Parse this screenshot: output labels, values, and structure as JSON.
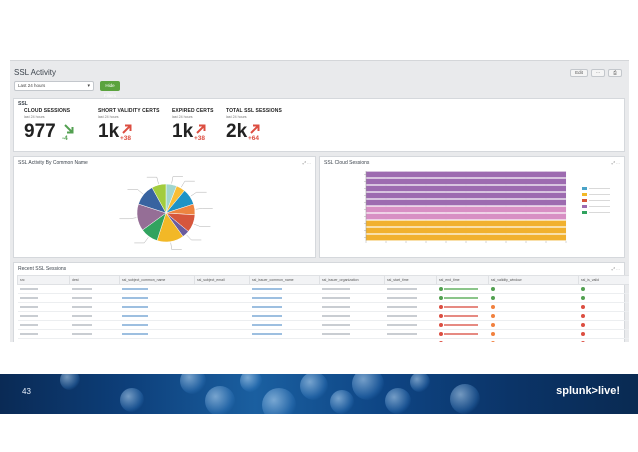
{
  "dashboard": {
    "title": "SSL Activity",
    "time_picker": "Last 24 hours",
    "hide_filters_label": "Hide Filters",
    "toolbar": {
      "edit": "Edit",
      "export": "⋯",
      "print": "⎙"
    }
  },
  "kpis": {
    "panel_title": "SSL",
    "items": [
      {
        "label": "CLOUD SESSIONS",
        "sub": "last 24 hours",
        "value": "977",
        "delta": "-4",
        "trend": "down",
        "color": "#53a051"
      },
      {
        "label": "SHORT VALIDITY CERTS",
        "sub": "last 24 hours",
        "value": "1k",
        "delta": "+38",
        "trend": "up",
        "color": "#dc4e41"
      },
      {
        "label": "EXPIRED CERTS",
        "sub": "last 24 hours",
        "value": "1k",
        "delta": "+38",
        "trend": "up",
        "color": "#dc4e41"
      },
      {
        "label": "TOTAL SSL SESSIONS",
        "sub": "last 24 hours",
        "value": "2k",
        "delta": "+64",
        "trend": "up",
        "color": "#dc4e41"
      }
    ]
  },
  "pie_panel": {
    "title": "SSL Activity By Common Name",
    "tools": "⤢ ⋯"
  },
  "bar_panel": {
    "title": "SSL Cloud Sessions",
    "tools": "⤢ ⋯"
  },
  "chart_data": [
    {
      "type": "pie",
      "title": "SSL Activity By Common Name",
      "slices": [
        {
          "label": "",
          "value": 6,
          "color": "#a1d6ce"
        },
        {
          "label": "",
          "value": 5,
          "color": "#f8be34"
        },
        {
          "label": "",
          "value": 9,
          "color": "#1e93c6"
        },
        {
          "label": "",
          "value": 6,
          "color": "#ed8440"
        },
        {
          "label": "",
          "value": 10,
          "color": "#d6563c"
        },
        {
          "label": "",
          "value": 4,
          "color": "#6a5c9e"
        },
        {
          "label": "",
          "value": 15,
          "color": "#f2b827"
        },
        {
          "label": "",
          "value": 10,
          "color": "#31a35f"
        },
        {
          "label": "",
          "value": 15,
          "color": "#956e96"
        },
        {
          "label": "",
          "value": 12,
          "color": "#3863a0"
        },
        {
          "label": "",
          "value": 8,
          "color": "#a2cc3e"
        }
      ]
    },
    {
      "type": "bar",
      "orientation": "horizontal",
      "stacked": true,
      "title": "SSL Cloud Sessions",
      "categories": [
        "",
        "",
        "",
        "",
        "",
        "",
        "",
        "",
        "",
        ""
      ],
      "series": [
        {
          "name": "",
          "color": "#9d6bb0",
          "values": [
            100,
            100,
            100,
            100,
            100,
            0,
            0,
            0,
            0,
            0
          ]
        },
        {
          "name": "",
          "color": "#d88fc4",
          "values": [
            0,
            0,
            0,
            0,
            0,
            100,
            100,
            0,
            0,
            0
          ]
        },
        {
          "name": "",
          "color": "#f1b12f",
          "values": [
            0,
            0,
            0,
            0,
            0,
            0,
            0,
            100,
            100,
            100
          ]
        }
      ],
      "xlim": [
        0,
        100
      ],
      "legend_position": "right"
    }
  ],
  "bar_legend_colors": [
    "#4aa3c7",
    "#f2b827",
    "#d6563c",
    "#9d6bb0",
    "#31a35f"
  ],
  "events_panel": {
    "title": "Recent SSL Sessions",
    "tools": "⤢ ⋯",
    "columns": [
      "src",
      "dest",
      "ssl_subject_common_name",
      "ssl_subject_email",
      "ssl_issuer_common_name",
      "ssl_issuer_organization",
      "ssl_start_time",
      "ssl_end_time",
      "ssl_validity_window",
      "ssl_is_valid"
    ],
    "rows": [
      {
        "cells": [
          "",
          "",
          "",
          "",
          "",
          "",
          "",
          "",
          "",
          ""
        ],
        "end_state": "ok",
        "valid_state": "ok",
        "window_state": "ok"
      },
      {
        "cells": [
          "",
          "",
          "",
          "",
          "",
          "",
          "",
          "",
          "",
          ""
        ],
        "end_state": "ok",
        "valid_state": "ok",
        "window_state": "ok"
      },
      {
        "cells": [
          "",
          "",
          "",
          "",
          "",
          "",
          "",
          "",
          "",
          ""
        ],
        "end_state": "bad",
        "valid_state": "bad",
        "window_state": "warn"
      },
      {
        "cells": [
          "",
          "",
          "",
          "",
          "",
          "",
          "",
          "",
          "",
          ""
        ],
        "end_state": "bad",
        "valid_state": "bad",
        "window_state": "warn"
      },
      {
        "cells": [
          "",
          "",
          "",
          "",
          "",
          "",
          "",
          "",
          "",
          ""
        ],
        "end_state": "bad",
        "valid_state": "bad",
        "window_state": "warn"
      },
      {
        "cells": [
          "",
          "",
          "",
          "",
          "",
          "",
          "",
          "",
          "",
          ""
        ],
        "end_state": "bad",
        "valid_state": "bad",
        "window_state": "warn"
      },
      {
        "cells": [
          "",
          "",
          "",
          "",
          "",
          "",
          "",
          "",
          "",
          ""
        ],
        "end_state": "bad",
        "valid_state": "bad",
        "window_state": "warn"
      }
    ]
  },
  "status_colors": {
    "ok": "#53a051",
    "bad": "#dc4e41",
    "warn": "#f1813f",
    "info": "#1e93c6"
  },
  "footer": {
    "page_number": "43",
    "brand": "splunk>live!"
  }
}
